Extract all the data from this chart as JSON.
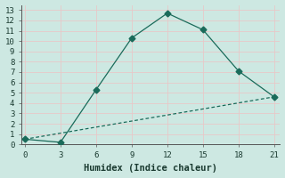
{
  "line1_x": [
    0,
    3,
    6,
    9,
    12,
    15,
    18,
    21
  ],
  "line1_y": [
    0.5,
    0.2,
    5.3,
    10.3,
    12.7,
    11.1,
    7.1,
    4.6
  ],
  "line2_x": [
    0,
    21
  ],
  "line2_y": [
    0.5,
    4.6
  ],
  "xlabel": "Humidex (Indice chaleur)",
  "xlim": [
    -0.3,
    21.5
  ],
  "ylim": [
    0,
    13.5
  ],
  "xticks": [
    0,
    3,
    6,
    9,
    12,
    15,
    18,
    21
  ],
  "yticks": [
    0,
    1,
    2,
    3,
    4,
    5,
    6,
    7,
    8,
    9,
    10,
    11,
    12,
    13
  ],
  "line_color": "#1a6b5a",
  "bg_color": "#cde8e2",
  "grid_color": "#b8d8d0",
  "marker": "D",
  "marker_size": 3.5,
  "tick_fontsize": 6.5,
  "xlabel_fontsize": 7.5
}
